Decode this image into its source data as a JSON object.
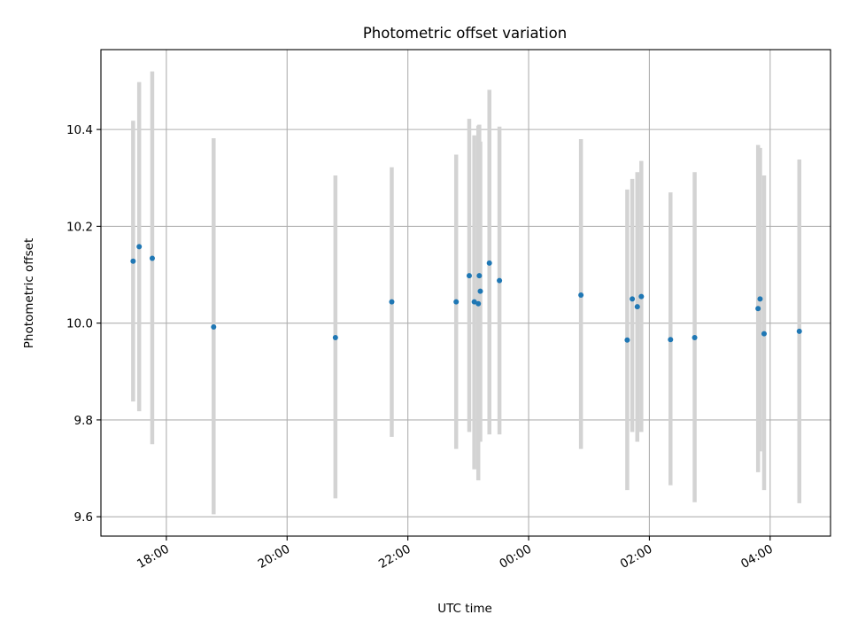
{
  "chart_data": {
    "type": "scatter",
    "title": "Photometric offset variation",
    "xlabel": "UTC time",
    "ylabel": "Photometric offset",
    "xlim": [
      "2020-01-01T16:55",
      "2020-01-02T05:00"
    ],
    "ylim": [
      9.56,
      10.565
    ],
    "grid": true,
    "x_ticks": [
      {
        "value": "2020-01-01T18:00",
        "label": "18:00"
      },
      {
        "value": "2020-01-01T20:00",
        "label": "20:00"
      },
      {
        "value": "2020-01-01T22:00",
        "label": "22:00"
      },
      {
        "value": "2020-01-02T00:00",
        "label": "00:00"
      },
      {
        "value": "2020-01-02T02:00",
        "label": "02:00"
      },
      {
        "value": "2020-01-02T04:00",
        "label": "04:00"
      }
    ],
    "y_ticks": [
      {
        "value": 9.6,
        "label": "9.6"
      },
      {
        "value": 9.8,
        "label": "9.8"
      },
      {
        "value": 10.0,
        "label": "10.0"
      },
      {
        "value": 10.2,
        "label": "10.2"
      },
      {
        "value": 10.4,
        "label": "10.4"
      }
    ],
    "marker_color": "#1f77b4",
    "errorbar_color": "#d3d3d3",
    "points": [
      {
        "x": "2020-01-01T17:27",
        "y": 10.128,
        "low": 9.838,
        "high": 10.418
      },
      {
        "x": "2020-01-01T17:33",
        "y": 10.158,
        "low": 9.818,
        "high": 10.498
      },
      {
        "x": "2020-01-01T17:46",
        "y": 10.134,
        "low": 9.75,
        "high": 10.52
      },
      {
        "x": "2020-01-01T18:47",
        "y": 9.992,
        "low": 9.605,
        "high": 10.382
      },
      {
        "x": "2020-01-01T20:48",
        "y": 9.97,
        "low": 9.638,
        "high": 10.305
      },
      {
        "x": "2020-01-01T21:44",
        "y": 10.044,
        "low": 9.765,
        "high": 10.322
      },
      {
        "x": "2020-01-01T22:48",
        "y": 10.044,
        "low": 9.74,
        "high": 10.348
      },
      {
        "x": "2020-01-01T23:01",
        "y": 10.098,
        "low": 9.775,
        "high": 10.422
      },
      {
        "x": "2020-01-01T23:06",
        "y": 10.044,
        "low": 9.698,
        "high": 10.388
      },
      {
        "x": "2020-01-01T23:10",
        "y": 10.04,
        "low": 9.675,
        "high": 10.408
      },
      {
        "x": "2020-01-01T23:11",
        "y": 10.098,
        "low": 9.76,
        "high": 10.41
      },
      {
        "x": "2020-01-01T23:12",
        "y": 10.066,
        "low": 9.755,
        "high": 10.375
      },
      {
        "x": "2020-01-01T23:21",
        "y": 10.124,
        "low": 9.77,
        "high": 10.482
      },
      {
        "x": "2020-01-01T23:31",
        "y": 10.088,
        "low": 9.77,
        "high": 10.406
      },
      {
        "x": "2020-01-02T00:52",
        "y": 10.058,
        "low": 9.74,
        "high": 10.38
      },
      {
        "x": "2020-01-02T01:38",
        "y": 9.965,
        "low": 9.655,
        "high": 10.276
      },
      {
        "x": "2020-01-02T01:43",
        "y": 10.05,
        "low": 9.775,
        "high": 10.298
      },
      {
        "x": "2020-01-02T01:48",
        "y": 10.034,
        "low": 9.755,
        "high": 10.312
      },
      {
        "x": "2020-01-02T01:52",
        "y": 10.055,
        "low": 9.775,
        "high": 10.335
      },
      {
        "x": "2020-01-02T02:21",
        "y": 9.966,
        "low": 9.665,
        "high": 10.27
      },
      {
        "x": "2020-01-02T02:45",
        "y": 9.97,
        "low": 9.63,
        "high": 10.312
      },
      {
        "x": "2020-01-02T03:48",
        "y": 10.03,
        "low": 9.692,
        "high": 10.368
      },
      {
        "x": "2020-01-02T03:50",
        "y": 10.05,
        "low": 9.735,
        "high": 10.362
      },
      {
        "x": "2020-01-02T03:54",
        "y": 9.978,
        "low": 9.655,
        "high": 10.305
      },
      {
        "x": "2020-01-02T04:29",
        "y": 9.983,
        "low": 9.628,
        "high": 10.338
      }
    ]
  }
}
